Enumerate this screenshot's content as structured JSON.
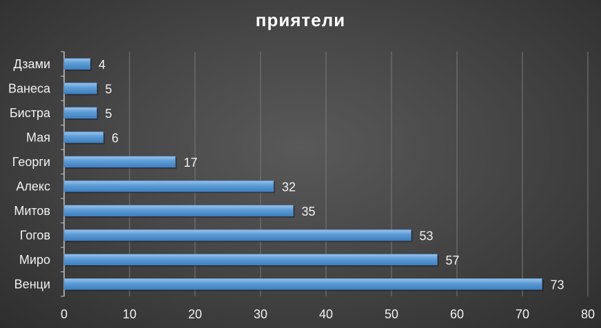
{
  "chart_data": {
    "type": "bar",
    "orientation": "horizontal",
    "title": "приятели",
    "xlabel": "",
    "ylabel": "",
    "categories": [
      "Дзами",
      "Ванеса",
      "Бистра",
      "Мая",
      "Георги",
      "Алекс",
      "Митов",
      "Гогов",
      "Миро",
      "Венци"
    ],
    "values": [
      4,
      5,
      5,
      6,
      17,
      32,
      35,
      53,
      57,
      73
    ],
    "xlim": [
      0,
      80
    ],
    "xticks": [
      0,
      10,
      20,
      30,
      40,
      50,
      60,
      70,
      80
    ],
    "grid": true,
    "legend": "none",
    "data_labels": true,
    "bar_color": "#5b9bd5",
    "bar_color_dark": "#3f7fc0",
    "bar_color_light": "#9cc3ea"
  }
}
